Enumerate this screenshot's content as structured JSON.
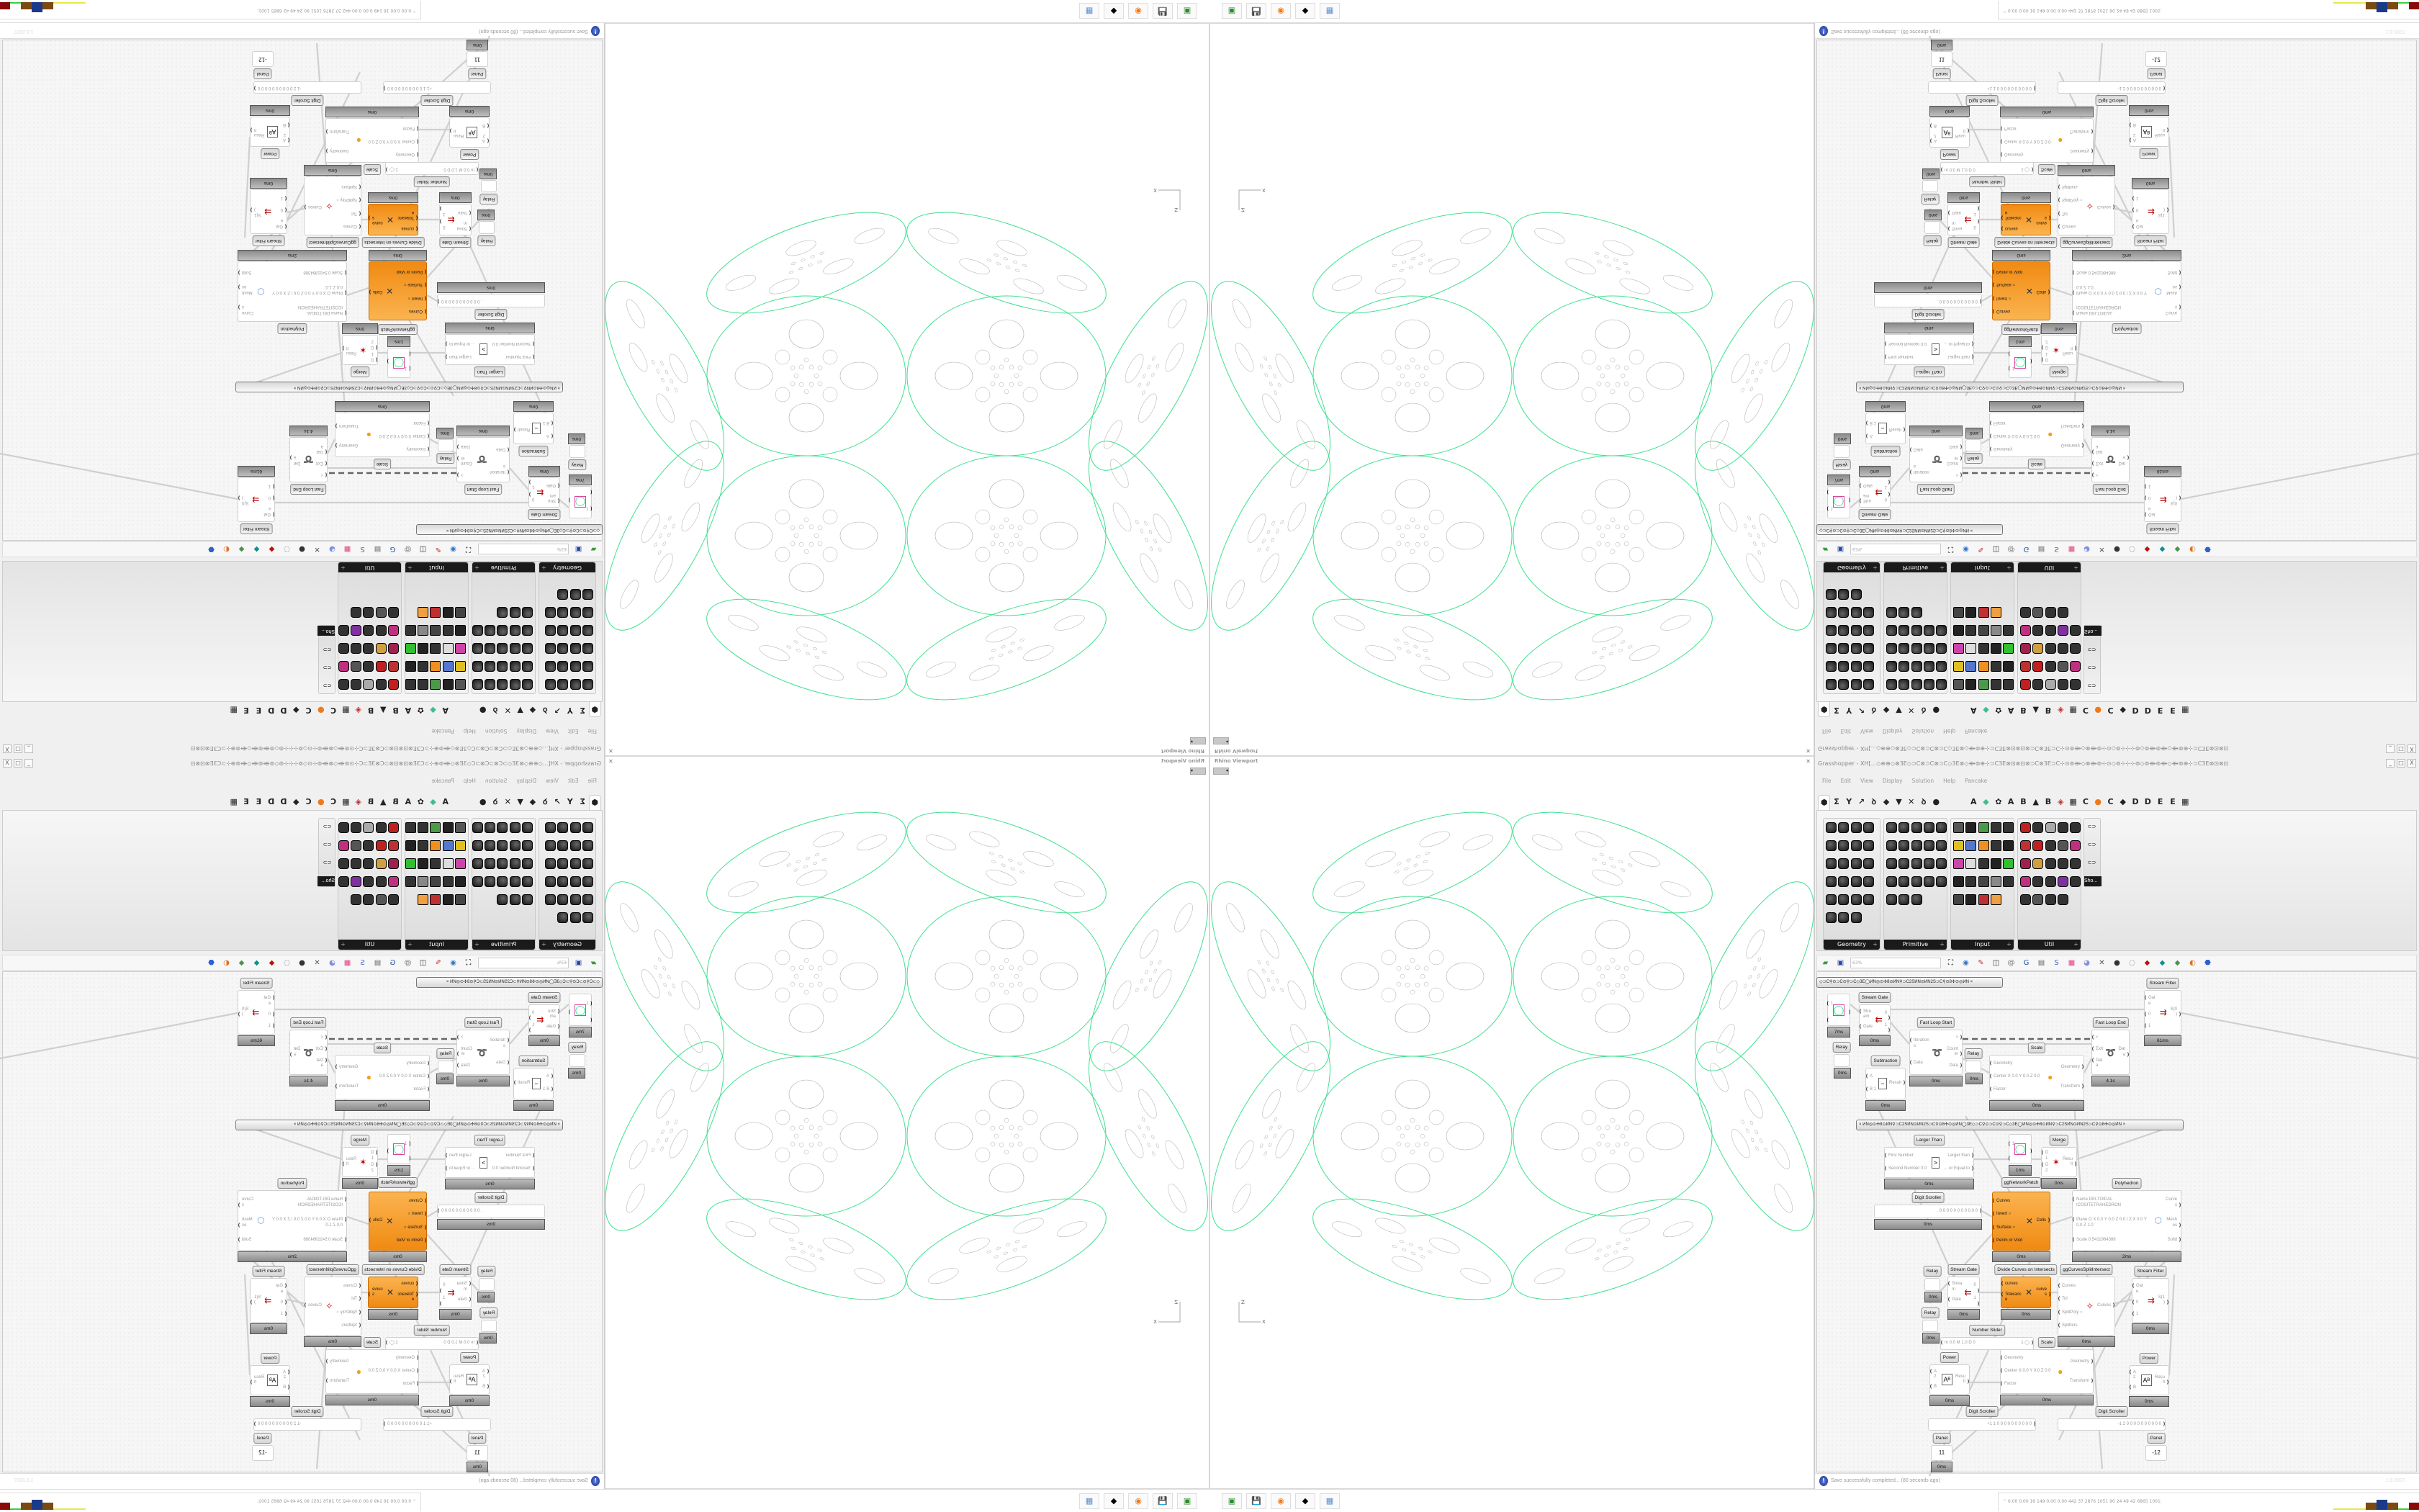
{
  "viewport": {
    "title": "Rhino Viewport",
    "close": "✕",
    "axis_z": "Z",
    "axis_x": "X",
    "curve_color": "#3ee08f",
    "inner_color": "#aaaaaa"
  },
  "grasshopper": {
    "title": "Grasshopper - XH[...◇⊕⊕◇⊗3E◇⊃C⊗⊃C⊗⊃C◇3E⊗◇⟴⊚⊕⊹⊃C3E⊗⊡⊗⊡⊗⊃C⊗3E⊃C⊹⊙⊚⟴◇⊗⟴⊚⊹⊙◇⊚⊹⊹⊹⊚◇⊚⟴⊚⟴◇⟴⊚⊕⊹⊃C3E⊗⊡⊗⊡",
    "window_buttons": [
      "_",
      "□",
      "X"
    ],
    "menu": [
      "File",
      "Edit",
      "View",
      "Display",
      "Solution",
      "Help",
      "Pancake"
    ],
    "tabs": [
      {
        "icon": "params-hexagon-icon",
        "glyph": "⬢"
      },
      {
        "icon": "maths-sigma-icon",
        "glyph": "Σ"
      },
      {
        "icon": "sets-icon",
        "glyph": "Y"
      },
      {
        "icon": "vector-icon",
        "glyph": "↗"
      },
      {
        "icon": "curve-icon",
        "glyph": "ꝺ"
      },
      {
        "icon": "surface-icon",
        "glyph": "◆"
      },
      {
        "icon": "mesh-icon",
        "glyph": "▼"
      },
      {
        "icon": "intersect-icon",
        "glyph": "✕"
      },
      {
        "icon": "transform-icon",
        "glyph": "ꝺ"
      },
      {
        "icon": "display-eye-icon",
        "glyph": "●"
      },
      {
        "icon": "",
        "glyph": ""
      },
      {
        "icon": "",
        "glyph": ""
      },
      {
        "icon": "tab-a-icon",
        "glyph": "A"
      },
      {
        "icon": "crystal-icon",
        "glyph": "◆"
      },
      {
        "icon": "gear-flower-icon",
        "glyph": "✿"
      },
      {
        "icon": "tab-a2-icon",
        "glyph": "A"
      },
      {
        "icon": "tab-b-icon",
        "glyph": "B"
      },
      {
        "icon": "mountain-icon",
        "glyph": "▲"
      },
      {
        "icon": "tab-b2-icon",
        "glyph": "B"
      },
      {
        "icon": "shield-icon",
        "glyph": "◈"
      },
      {
        "icon": "grid-icon",
        "glyph": "▦"
      },
      {
        "icon": "tab-c-icon",
        "glyph": "C"
      },
      {
        "icon": "orange-circle-icon",
        "glyph": "●"
      },
      {
        "icon": "tab-c2-icon",
        "glyph": "C"
      },
      {
        "icon": "rooster-icon",
        "glyph": "◆"
      },
      {
        "icon": "tab-d-icon",
        "glyph": "D"
      },
      {
        "icon": "tab-d2-icon",
        "glyph": "D"
      },
      {
        "icon": "tab-e-icon",
        "glyph": "E"
      },
      {
        "icon": "tab-e2-icon",
        "glyph": "E"
      },
      {
        "icon": "film-icon",
        "glyph": "▦"
      }
    ],
    "palette": [
      {
        "label": "Geometry",
        "count": 23
      },
      {
        "label": "Primitive",
        "count": 23
      },
      {
        "label": "Input",
        "count": 24
      },
      {
        "label": "Util",
        "count": 24
      },
      {
        "label": "Sho...",
        "count": 3
      }
    ],
    "toolbar": {
      "zoom": "63%",
      "icons": [
        "open-file-icon",
        "save-icon",
        "zoom-extents-icon",
        "preview-eye-icon",
        "sketch-pen-icon",
        "bake-icon",
        "email-icon",
        "gha-icon",
        "canvas-icon",
        "search-s-icon",
        "package-icon",
        "lightbulb-icon",
        "wires-icon",
        "preview-shaded-icon",
        "preview-wire-icon",
        "preview-red-icon",
        "preview-teal-icon",
        "preview-green-icon",
        "preview-orange-icon",
        "preview-blue-icon"
      ]
    },
    "groups": [
      "◇⊃C⚲⊙⊃C⊙⚲⊃C◇3E◯ИN◎⊙✣8⊙ИN⚲⊃C2SИN⊙ИN2S⊃C⚲⊙8✣⊙◎ИN        ×",
      "×      ИN◎⊙✣8⊙ИN⚲⊃C2SИN⊙ИN2S⊃C⚲⊙8✣⊙◎ИN◯3E◇⊃C⚲⊙⊃C⊙⚲⊃C◇3E◯ИN◎⊙✣8⊙ИN⚲⊃C2SИN⊙ИN2S⊃C⚲⊙8✣⊙◎ИN      ×"
    ],
    "components": [
      {
        "id": "stream-gate-1",
        "label": "Stream Gate",
        "inputs": [
          "Stream",
          "Gate"
        ],
        "outputs": [
          "0",
          "1"
        ],
        "icon": "⇇",
        "time": "0ms"
      },
      {
        "id": "circle-preview-1",
        "label": "",
        "inputs": [
          "1",
          ""
        ],
        "outputs": [
          ""
        ],
        "icon": "◯",
        "time": "7ms"
      },
      {
        "id": "relay-1",
        "label": "Relay",
        "inputs": [],
        "outputs": [],
        "icon": "",
        "time": "0ms"
      },
      {
        "id": "fast-loop-start",
        "label": "Fast Loop Start",
        "inputs": [
          "Iterations",
          "Data"
        ],
        "outputs": [
          ">",
          "Counter",
          "Data"
        ],
        "icon": "➰",
        "time": "0ms"
      },
      {
        "id": "relay-2",
        "label": "Relay",
        "inputs": [],
        "outputs": [],
        "icon": "",
        "time": "0ms"
      },
      {
        "id": "subtraction",
        "label": "Subtraction",
        "inputs": [
          "A",
          "B 1"
        ],
        "outputs": [
          "Result"
        ],
        "icon": "−",
        "time": "0ms"
      },
      {
        "id": "scale-1",
        "label": "Scale",
        "inputs": [
          "Geometry",
          "Center X 0.0 Y 0.0 Z 0.0",
          "Factor"
        ],
        "outputs": [
          "Geometry",
          "Transform"
        ],
        "icon": "●",
        "time": "0ms"
      },
      {
        "id": "fast-loop-end",
        "label": "Fast Loop End",
        "inputs": [
          "<",
          "Exit",
          "Data"
        ],
        "outputs": [
          "Data"
        ],
        "icon": "➰",
        "time": "4.1s"
      },
      {
        "id": "stream-filter-1",
        "label": "Stream Filter",
        "inputs": [
          "Gate",
          "0",
          "1"
        ],
        "outputs": [
          "S(0)"
        ],
        "icon": "⇉",
        "time": "61ms"
      },
      {
        "id": "larger-than",
        "label": "Larger Than",
        "inputs": [
          "First Number",
          "Second Number 0.0"
        ],
        "outputs": [
          "Larger than",
          "... or Equal to"
        ],
        "icon": ">",
        "time": "0ms"
      },
      {
        "id": "circle-preview-2",
        "label": "",
        "inputs": [
          "1",
          ""
        ],
        "outputs": [
          ""
        ],
        "icon": "◯",
        "time": "1ms"
      },
      {
        "id": "merge",
        "label": "Merge",
        "inputs": [
          "D1",
          "D2"
        ],
        "outputs": [
          "Result"
        ],
        "icon": "✶",
        "time": "0ms"
      },
      {
        "id": "gg-network-patch",
        "label": "ggNetworkPatch",
        "inputs": [],
        "outputs": [],
        "icon": "",
        "time": null,
        "label_only": true
      },
      {
        "id": "polyhedron",
        "label": "Polyhedron",
        "inputs": [
          "Name DELTOIDAL ICOSITETRAHEDRON",
          "Plane  O X 0.0 Y 0.0 Z 0.0 / Z X 0.0 Y 0.0 Z 1.0",
          "Scale 0.5411964388"
        ],
        "outputs": [
          "Curves",
          "Meshes",
          "Solid"
        ],
        "icon": "⬡",
        "time": "2ms"
      },
      {
        "id": "digit-scroller-1",
        "label": "Digit Scroller",
        "inputs": [],
        "outputs": [
          ". 0 0 0 0 0 0 0 0 0 0 0"
        ],
        "icon": "",
        "time": "0ms"
      },
      {
        "id": "curves-cells",
        "label": "",
        "inputs": [
          "Curves",
          "Invert ○",
          "Surface ○",
          "Perim or Void"
        ],
        "outputs": [
          "Cells"
        ],
        "icon": "✕",
        "time": "0ms",
        "orange": true
      },
      {
        "id": "relay-3",
        "label": "Relay",
        "inputs": [],
        "outputs": [],
        "icon": "",
        "time": "0ms"
      },
      {
        "id": "relay-4",
        "label": "Relay",
        "inputs": [],
        "outputs": [],
        "icon": "",
        "time": "0ms"
      },
      {
        "id": "stream-gate-2",
        "label": "Stream Gate",
        "inputs": [
          "Stream",
          "Gate"
        ],
        "outputs": [
          "0",
          "1"
        ],
        "icon": "⇇",
        "time": "0ms"
      },
      {
        "id": "divide-curves",
        "label": "Divide Curves on Intersects",
        "inputs": [
          "curves",
          "Tolerance"
        ],
        "outputs": [
          "curves"
        ],
        "icon": "✕",
        "time": "0ms",
        "orange": true
      },
      {
        "id": "gg-curves-split",
        "label": "ggCurvesSplitIntersect",
        "inputs": [
          "Curves",
          "Tol",
          "SplitPoly ○",
          "Splitters"
        ],
        "outputs": [
          "Curves"
        ],
        "icon": "✧",
        "time": "0ms"
      },
      {
        "id": "stream-filter-2",
        "label": "Stream Filter",
        "inputs": [
          "Gate",
          "0",
          "1"
        ],
        "outputs": [
          "S(1)"
        ],
        "icon": "⇉",
        "time": "0ms"
      },
      {
        "id": "number-slider",
        "label": "Number Slider",
        "inputs": [
          "m 0.0 M 1.0 D 0"
        ],
        "outputs": [
          "1 ◯"
        ],
        "icon": "",
        "time": null
      },
      {
        "id": "scale-2",
        "label": "Scale",
        "inputs": [
          "Geometry",
          "Center X 0.0 Y 0.0 Z 0.0",
          "Factor"
        ],
        "outputs": [
          "Geometry",
          "Transform"
        ],
        "icon": "●",
        "time": "0ms"
      },
      {
        "id": "power-1",
        "label": "Power",
        "inputs": [
          "A 2",
          "B"
        ],
        "outputs": [
          "Result"
        ],
        "icon": "Aᴮ",
        "time": "0ms"
      },
      {
        "id": "power-2",
        "label": "Power",
        "inputs": [
          "A 2",
          "B"
        ],
        "outputs": [
          "Result"
        ],
        "icon": "Aᴮ",
        "time": "0ms"
      },
      {
        "id": "digit-scroller-2",
        "label": "Digit Scroller",
        "inputs": [],
        "outputs": [
          "+1 1  0 0 0 0 0 0 0 0 0 0"
        ],
        "icon": "",
        "time": null
      },
      {
        "id": "digit-scroller-3",
        "label": "Digit Scroller",
        "inputs": [],
        "outputs": [
          "-1 2  0 0 0 0 0 0 0 0 0 0"
        ],
        "icon": "",
        "time": null
      },
      {
        "id": "panel-1",
        "label": "Panel",
        "inputs": [],
        "outputs": [],
        "icon": "11",
        "time": "0ms"
      },
      {
        "id": "panel-2",
        "label": "Panel",
        "inputs": [],
        "outputs": [],
        "icon": "-12",
        "time": null
      }
    ],
    "status": {
      "text": "Save successfully completed... (80 seconds ago)",
      "version": "1.0.0007"
    }
  },
  "taskbar": {
    "apps": [
      {
        "icon": "monitor-app-icon",
        "glyph": "▣",
        "color": "#2a8a2a"
      },
      {
        "icon": "floppy-64-app-icon",
        "glyph": "💾",
        "color": "#2b2b9a"
      },
      {
        "icon": "firefox-icon",
        "glyph": "◉",
        "color": "#f07a1a"
      },
      {
        "icon": "rhino-icon",
        "glyph": "◆",
        "color": "#000000"
      },
      {
        "icon": "calculator-icon",
        "glyph": "▦",
        "color": "#5a8ad0"
      }
    ],
    "tray_text": "⌃  0.00 0.00  16  149 0.00 0.00  442  37  2876 1051  90  24  49  42  6865 1001:",
    "meter_colors": [
      "#e8e84a",
      "#e8e84a",
      "#e8e84a",
      "#7a4a10",
      "#1b3a8a",
      "#7a4a10",
      "#3ecf3e",
      "#8a0a0a"
    ]
  }
}
